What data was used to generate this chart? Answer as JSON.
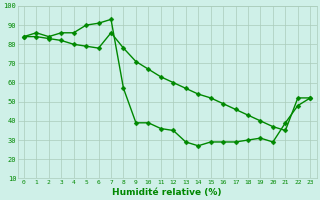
{
  "xlabel": "Humidité relative (%)",
  "background_color": "#cff0e8",
  "grid_color": "#aaccbb",
  "line_color": "#008800",
  "markersize": 2.5,
  "linewidth": 1.0,
  "xlim": [
    -0.5,
    23.5
  ],
  "ylim": [
    10,
    100
  ],
  "yticks": [
    10,
    20,
    30,
    40,
    50,
    60,
    70,
    80,
    90,
    100
  ],
  "xticks": [
    0,
    1,
    2,
    3,
    4,
    5,
    6,
    7,
    8,
    9,
    10,
    11,
    12,
    13,
    14,
    15,
    16,
    17,
    18,
    19,
    20,
    21,
    22,
    23
  ],
  "line1_x": [
    0,
    1,
    2,
    3,
    4,
    5,
    6,
    7,
    8,
    9,
    10,
    11,
    12,
    13,
    14,
    15,
    16,
    17,
    18,
    19,
    20,
    21,
    22,
    23
  ],
  "line1_y": [
    84,
    86,
    84,
    86,
    86,
    90,
    91,
    93,
    57,
    39,
    39,
    36,
    35,
    29,
    27,
    29,
    29,
    29,
    30,
    31,
    29,
    39,
    48,
    52
  ],
  "line2_x": [
    0,
    1,
    2,
    3,
    4,
    5,
    6,
    7,
    8,
    9,
    10,
    11,
    12,
    13,
    14,
    15,
    16,
    17,
    18,
    19,
    20,
    21,
    22,
    23
  ],
  "line2_y": [
    84,
    84,
    83,
    82,
    80,
    79,
    78,
    86,
    78,
    71,
    67,
    63,
    60,
    57,
    54,
    52,
    49,
    46,
    43,
    40,
    37,
    35,
    52,
    52
  ]
}
